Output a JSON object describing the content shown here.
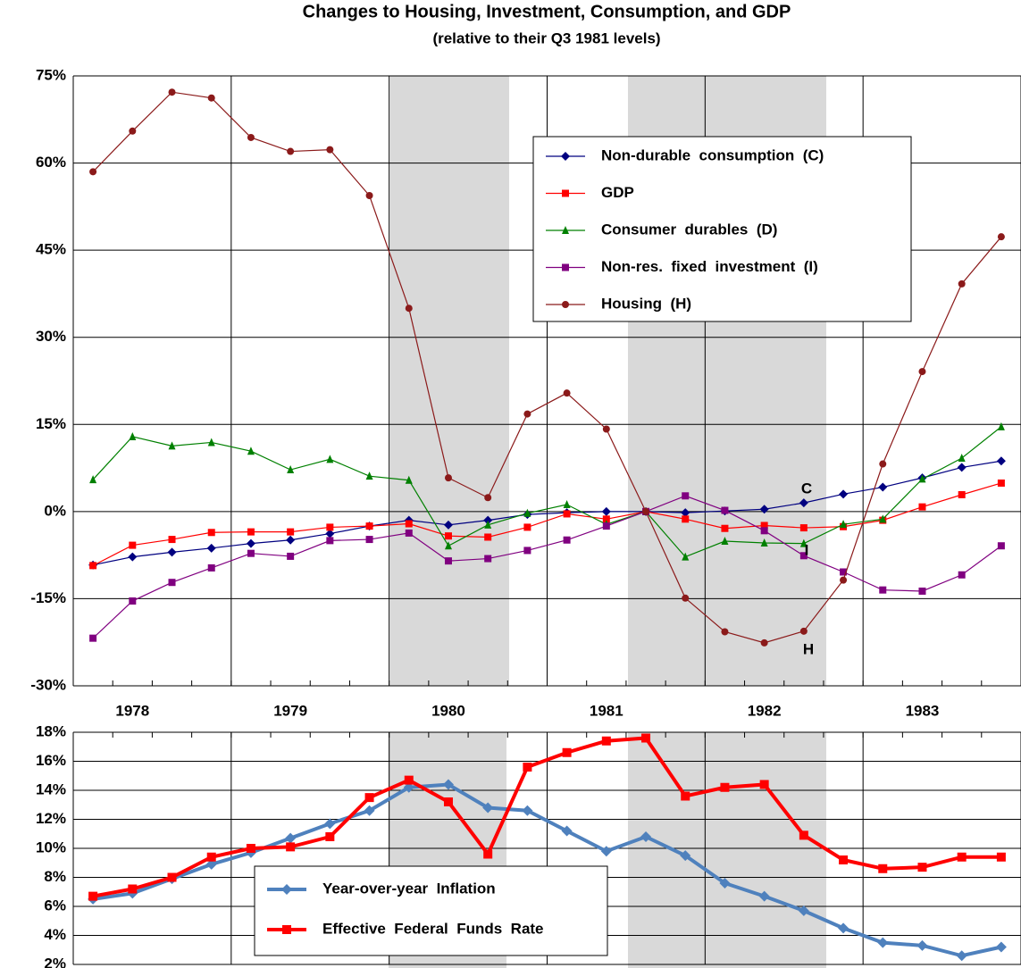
{
  "chart_data": [
    {
      "type": "line",
      "title": "Changes to Housing, Investment, Consumption, and GDP",
      "subtitle": "(relative to their Q3 1981 levels)",
      "categories": [
        null,
        "1978",
        null,
        null,
        null,
        "1979",
        null,
        null,
        null,
        "1980",
        null,
        null,
        null,
        "1981",
        null,
        null,
        null,
        "1982",
        null,
        null,
        null,
        "1983",
        null,
        null
      ],
      "ylim": [
        -30,
        75
      ],
      "yticks": [
        {
          "value": -30,
          "label": "-30%"
        },
        {
          "value": -15,
          "label": "-15%"
        },
        {
          "value": 0,
          "label": "0%"
        },
        {
          "value": 15,
          "label": "15%"
        },
        {
          "value": 30,
          "label": "30%"
        },
        {
          "value": 45,
          "label": "45%"
        },
        {
          "value": 60,
          "label": "60%"
        },
        {
          "value": 75,
          "label": "75%"
        }
      ],
      "grid": true,
      "legend": "top-right",
      "annotations": [
        "C",
        "I",
        "H"
      ],
      "series": [
        {
          "name": "Non-durable  consumption  (C)",
          "color": "#000080",
          "marker": "diamond",
          "values": [
            -9.2,
            -7.8,
            -7.0,
            -6.3,
            -5.5,
            -4.9,
            -3.8,
            -2.5,
            -1.5,
            -2.3,
            -1.5,
            -0.5,
            -0.2,
            0,
            0,
            -0.2,
            0.1,
            0.4,
            1.5,
            3.0,
            4.2,
            5.8,
            7.6,
            8.7
          ]
        },
        {
          "name": "GDP",
          "color": "#ff0000",
          "marker": "square",
          "values": [
            -9.3,
            -5.8,
            -4.8,
            -3.6,
            -3.5,
            -3.5,
            -2.7,
            -2.5,
            -2.1,
            -4.2,
            -4.4,
            -2.7,
            -0.4,
            -1.3,
            0,
            -1.3,
            -2.9,
            -2.4,
            -2.8,
            -2.6,
            -1.5,
            0.8,
            2.9,
            4.9
          ]
        },
        {
          "name": "Consumer  durables  (D)",
          "color": "#008000",
          "marker": "triangle",
          "values": [
            5.5,
            12.9,
            11.3,
            11.9,
            10.4,
            7.2,
            9.0,
            6.1,
            5.4,
            -5.9,
            -2.3,
            -0.3,
            1.2,
            -2.2,
            0,
            -7.8,
            -5.1,
            -5.4,
            -5.5,
            -2.2,
            -1.3,
            5.6,
            9.2,
            14.6
          ]
        },
        {
          "name": "Non-res.  fixed  investment  (I)",
          "color": "#800080",
          "marker": "square",
          "values": [
            -21.8,
            -15.4,
            -12.2,
            -9.7,
            -7.2,
            -7.7,
            -5.0,
            -4.8,
            -3.7,
            -8.5,
            -8.1,
            -6.7,
            -4.9,
            -2.5,
            0,
            2.7,
            0.2,
            -3.3,
            -7.6,
            -10.4,
            -13.5,
            -13.7,
            -10.9,
            -5.9
          ]
        },
        {
          "name": "Housing  (H)",
          "color": "#8b1a1a",
          "marker": "circle",
          "values": [
            58.5,
            65.5,
            72.2,
            71.2,
            64.4,
            62.0,
            62.3,
            54.4,
            35.0,
            5.8,
            2.4,
            16.8,
            20.4,
            14.2,
            0,
            -14.9,
            -20.7,
            -22.6,
            -20.6,
            -11.8,
            8.2,
            24.1,
            39.2,
            47.3
          ]
        }
      ]
    },
    {
      "type": "line",
      "ylim": [
        2,
        18
      ],
      "yticks": [
        {
          "value": 2,
          "label": "2%"
        },
        {
          "value": 4,
          "label": "4%"
        },
        {
          "value": 6,
          "label": "6%"
        },
        {
          "value": 8,
          "label": "8%"
        },
        {
          "value": 10,
          "label": "10%"
        },
        {
          "value": 12,
          "label": "12%"
        },
        {
          "value": 14,
          "label": "14%"
        },
        {
          "value": 16,
          "label": "16%"
        },
        {
          "value": 18,
          "label": "18%"
        }
      ],
      "grid": true,
      "legend": "bottom-left",
      "series": [
        {
          "name": "Year-over-year  Inflation",
          "color": "#4f81bd",
          "marker": "diamond",
          "values": [
            6.5,
            6.9,
            7.9,
            8.9,
            9.7,
            10.7,
            11.7,
            12.6,
            14.2,
            14.4,
            12.8,
            12.6,
            11.2,
            9.8,
            10.8,
            9.5,
            7.6,
            6.7,
            5.7,
            4.5,
            3.5,
            3.3,
            2.6,
            3.2
          ]
        },
        {
          "name": "Effective  Federal  Funds  Rate",
          "color": "#ff0000",
          "marker": "square",
          "values": [
            6.7,
            7.2,
            8.0,
            9.4,
            10.0,
            10.1,
            10.8,
            13.5,
            14.7,
            13.2,
            9.6,
            15.6,
            16.6,
            17.4,
            17.6,
            13.6,
            14.2,
            14.4,
            10.9,
            9.2,
            8.6,
            8.7,
            9.4,
            9.4
          ]
        }
      ]
    }
  ]
}
